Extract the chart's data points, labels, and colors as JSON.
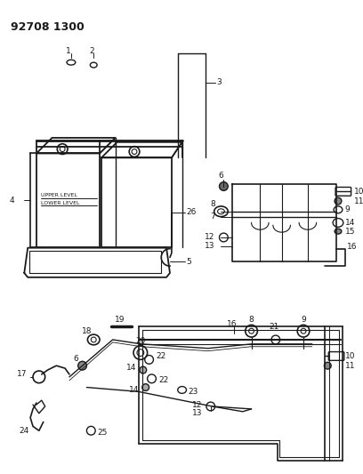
{
  "title": "92708 1300",
  "bg_color": "#ffffff",
  "lc": "#1a1a1a",
  "lfs": 6.5,
  "title_fs": 9
}
